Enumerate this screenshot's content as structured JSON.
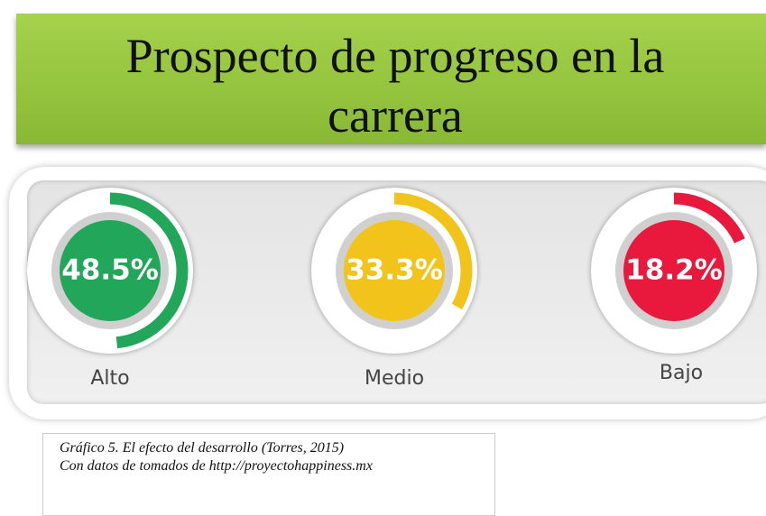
{
  "chart_data": {
    "type": "gauge",
    "title": "Prospecto de progreso en la carrera",
    "categories": [
      "Alto",
      "Medio",
      "Bajo"
    ],
    "values": [
      48.5,
      33.3,
      18.2
    ],
    "value_labels": [
      "48.5%",
      "33.3%",
      "18.2%"
    ],
    "colors": [
      "#22a65a",
      "#f2c31b",
      "#e8193c"
    ]
  },
  "caption": [
    "Gráfico 5. El efecto del desarrollo (Torres, 2015)",
    "Con datos de tomados de http://proyectohappiness.mx"
  ]
}
